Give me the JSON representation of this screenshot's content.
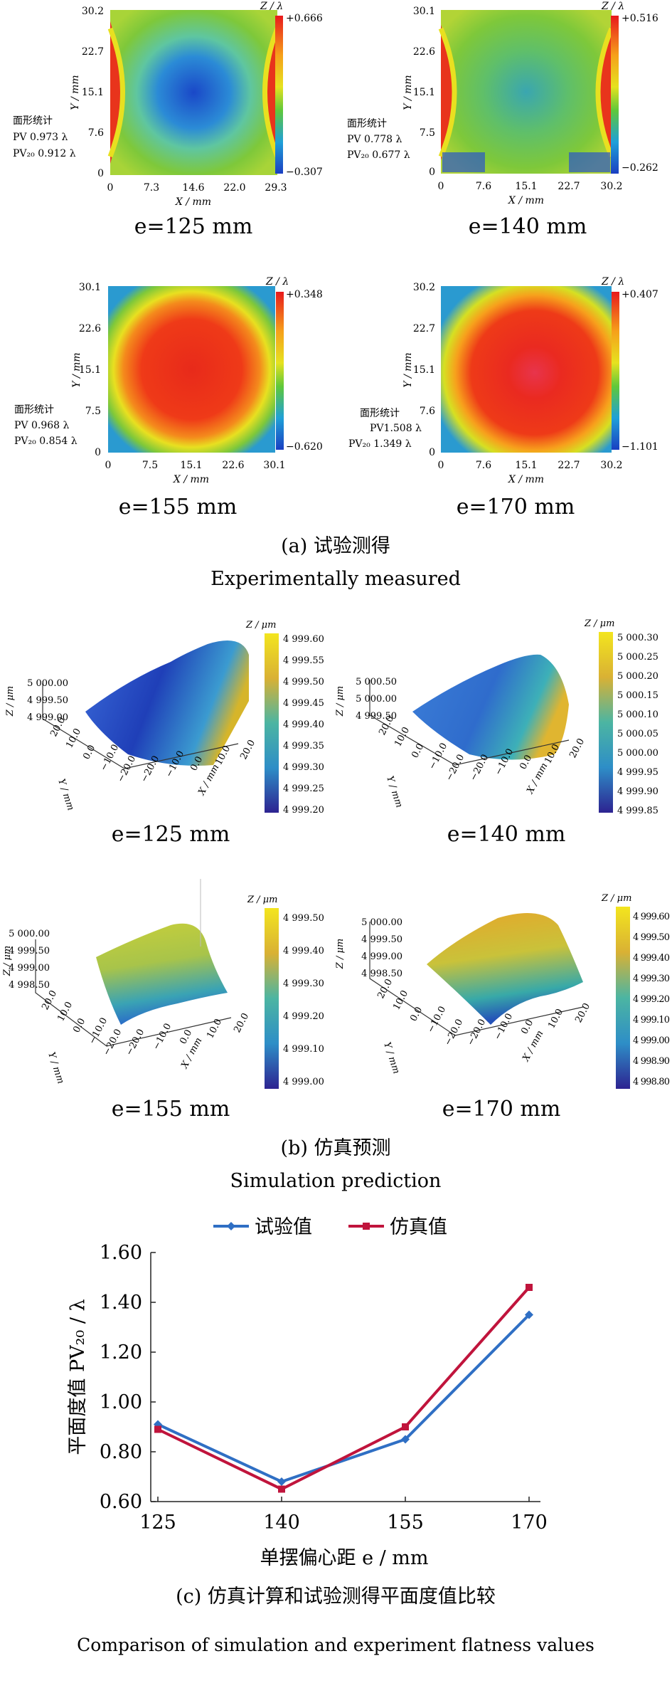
{
  "section_a": {
    "caption_cn": "(a) 试验测得",
    "caption_en": "Experimentally measured",
    "panels": [
      {
        "e_label": "e=125 mm",
        "z_label": "Z / λ",
        "cb_max": "+0.666",
        "cb_min": "−0.307",
        "y_ticks": [
          "30.2",
          "22.7",
          "15.1",
          "7.6",
          "0"
        ],
        "x_ticks": [
          "0",
          "7.3",
          "14.6",
          "22.0",
          "29.3"
        ],
        "x_label": "X / mm",
        "y_label": "Y / mm",
        "stats_title": "面形统计",
        "pv": "PV   0.973 λ",
        "pv20": "PV₂₀  0.912 λ"
      },
      {
        "e_label": "e=140 mm",
        "z_label": "Z / λ",
        "cb_max": "+0.516",
        "cb_min": "−0.262",
        "y_ticks": [
          "30.1",
          "22.6",
          "15.1",
          "7.5",
          "0"
        ],
        "x_ticks": [
          "0",
          "7.6",
          "15.1",
          "22.7",
          "30.2"
        ],
        "x_label": "X / mm",
        "y_label": "Y / mm",
        "stats_title": "面形统计",
        "pv": "PV    0.778 λ",
        "pv20": "PV₂₀  0.677 λ"
      },
      {
        "e_label": "e=155 mm",
        "z_label": "Z / λ",
        "cb_max": "+0.348",
        "cb_min": "−0.620",
        "y_ticks": [
          "30.1",
          "22.6",
          "15.1",
          "7.5",
          "0"
        ],
        "x_ticks": [
          "0",
          "7.5",
          "15.1",
          "22.6",
          "30.1"
        ],
        "x_label": "X / mm",
        "y_label": "Y / mm",
        "stats_title": "面形统计",
        "pv": "PV    0.968 λ",
        "pv20": "PV₂₀  0.854 λ"
      },
      {
        "e_label": "e=170 mm",
        "z_label": "Z / λ",
        "cb_max": "+0.407",
        "cb_min": "−1.101",
        "y_ticks": [
          "30.2",
          "22.7",
          "15.1",
          "7.6",
          "0"
        ],
        "x_ticks": [
          "0",
          "7.6",
          "15.1",
          "22.7",
          "30.2"
        ],
        "x_label": "X / mm",
        "y_label": "Y / mm",
        "stats_title": "面形统计",
        "pv": "PV1.508 λ",
        "pv20": "PV₂₀  1.349 λ"
      }
    ]
  },
  "section_b": {
    "caption_cn": "(b) 仿真预测",
    "caption_en": "Simulation prediction",
    "panels": [
      {
        "e_label": "e=125 mm",
        "z_label": "Z / μm",
        "cb_ticks": [
          "4 999.60",
          "4 999.55",
          "4 999.50",
          "4 999.45",
          "4 999.40",
          "4 999.35",
          "4 999.30",
          "4 999.25",
          "4 999.20"
        ],
        "z_ticks": [
          "5 000.00",
          "4 999.50",
          "4 999.00"
        ],
        "axis_ticks": [
          "20.0",
          "10.0",
          "0.0",
          "−10.0",
          "−20.0",
          "−20.0",
          "−10.0",
          "0.0",
          "10.0",
          "20.0"
        ],
        "x_label": "X / mm",
        "y_label": "Y / mm",
        "z_axis_label": "Z / μm"
      },
      {
        "e_label": "e=140 mm",
        "z_label": "Z / μm",
        "cb_ticks": [
          "5 000.30",
          "5 000.25",
          "5 000.20",
          "5 000.15",
          "5 000.10",
          "5 000.05",
          "5 000.00",
          "4 999.95",
          "4 999.90",
          "4 999.85"
        ],
        "z_ticks": [
          "5 000.50",
          "5 000.00",
          "4 999.50"
        ],
        "axis_ticks": [
          "20.0",
          "10.0",
          "0.0",
          "−10.0",
          "−20.0",
          "−20.0",
          "−10.0",
          "0.0",
          "10.0",
          "20.0"
        ],
        "x_label": "X / mm",
        "y_label": "Y / mm",
        "z_axis_label": "Z / μm"
      },
      {
        "e_label": "e=155 mm",
        "z_label": "Z / μm",
        "cb_ticks": [
          "4 999.50",
          "4 999.40",
          "4 999.30",
          "4 999.20",
          "4 999.10",
          "4 999.00"
        ],
        "z_ticks": [
          "5 000.00",
          "4 999.50",
          "4 999.00",
          "4 998.50"
        ],
        "axis_ticks": [
          "20.0",
          "10.0",
          "0.0",
          "−10.0",
          "−20.0",
          "−20.0",
          "−10.0",
          "0.0",
          "10.0",
          "20.0"
        ],
        "x_label": "X / mm",
        "y_label": "Y / mm",
        "z_axis_label": "Z / μm"
      },
      {
        "e_label": "e=170 mm",
        "z_label": "Z / μm",
        "cb_ticks": [
          "4 999.60",
          "4 999.50",
          "4 999.40",
          "4 999.30",
          "4 999.20",
          "4 999.10",
          "4 999.00",
          "4 998.90",
          "4 998.80"
        ],
        "z_ticks": [
          "5 000.00",
          "4 999.50",
          "4 999.00",
          "4 998.50"
        ],
        "axis_ticks": [
          "20.0",
          "10.0",
          "0.0",
          "−10.0",
          "−20.0",
          "−20.0",
          "−10.0",
          "0.0",
          "10.0",
          "20.0"
        ],
        "x_label": "X / mm",
        "y_label": "Y / mm",
        "z_axis_label": "Z / μm"
      }
    ]
  },
  "section_c": {
    "caption_cn": "(c) 仿真计算和试验测得平面度值比较",
    "caption_en": "Comparison of simulation and experiment flatness values"
  },
  "colors": {
    "experiment": "#2f6fc4",
    "simulation": "#c0143c"
  },
  "chart_data": {
    "type": "line",
    "categories": [
      "125",
      "140",
      "155",
      "170"
    ],
    "series": [
      {
        "name": "试验值",
        "values": [
          0.91,
          0.68,
          0.85,
          1.35
        ]
      },
      {
        "name": "仿真值",
        "values": [
          0.89,
          0.65,
          0.9,
          1.46
        ]
      }
    ],
    "xlabel": "单摆偏心距 e / mm",
    "ylabel": "平面度值 PV₂₀ / λ",
    "yticks": [
      "0.60",
      "0.80",
      "1.00",
      "1.20",
      "1.40",
      "1.60"
    ],
    "ylim": [
      0.6,
      1.6
    ],
    "legend": "top",
    "grid": false
  }
}
